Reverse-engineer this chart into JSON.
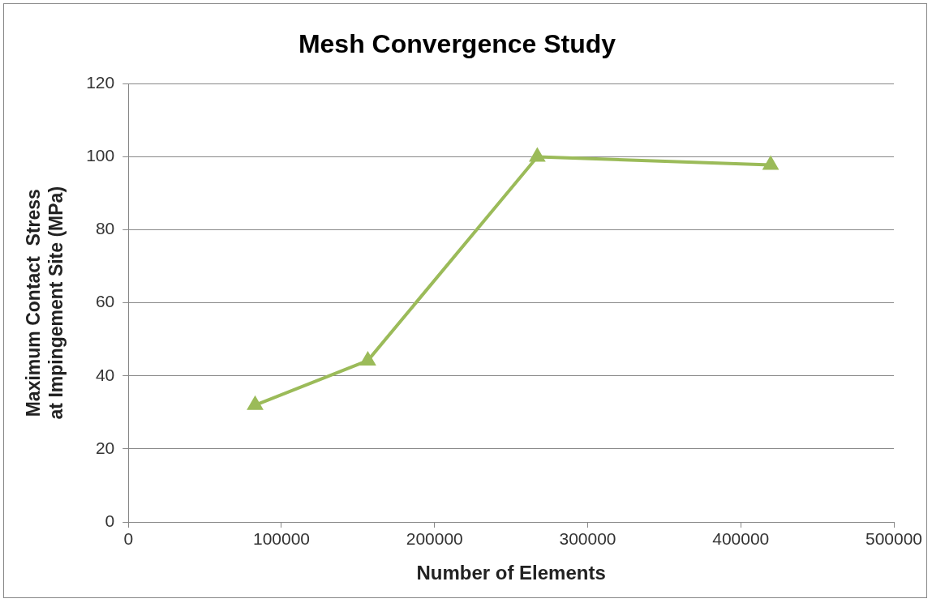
{
  "chart_data": {
    "type": "line",
    "title": "Mesh Convergence Study",
    "xlabel": "Number of Elements",
    "ylabel": "Maximum Contact  Stress at Impingement Site (MPa)",
    "x": [
      82800,
      156400,
      267100,
      419500
    ],
    "series": [
      {
        "color": "#9bbb59",
        "values": [
          32,
          44.2,
          100,
          97.8
        ]
      }
    ],
    "xlim": [
      0,
      500000
    ],
    "xticks": [
      0,
      100000,
      200000,
      300000,
      400000,
      500000
    ],
    "ylim": [
      0,
      120
    ],
    "yticks": [
      0,
      20,
      40,
      60,
      80,
      100,
      120
    ],
    "grid": "y",
    "legend": false,
    "marker": "triangle",
    "line_style": "solid"
  }
}
